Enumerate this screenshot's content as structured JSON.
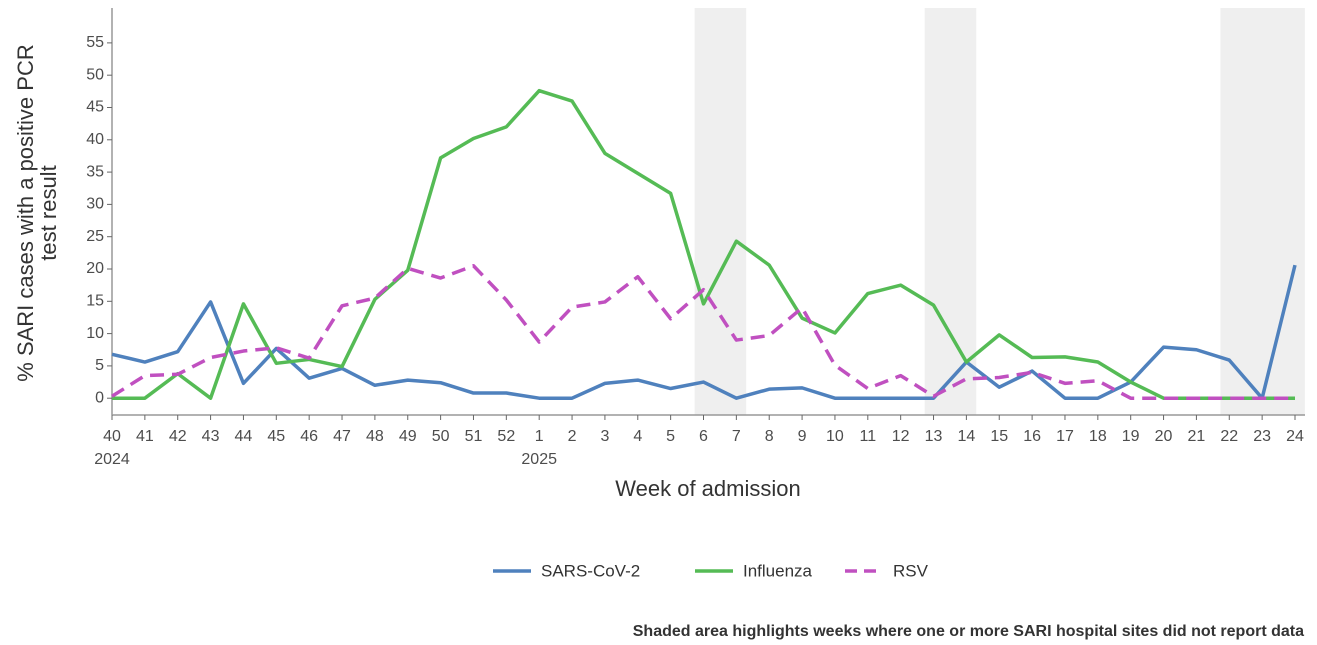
{
  "chart_data": {
    "type": "line",
    "y_label": [
      "% SARI cases with a positive PCR",
      "test result"
    ],
    "x_label": "Week of admission",
    "note": "Shaded area highlights weeks where one or more SARI hospital sites did not report data",
    "categories": [
      "40",
      "41",
      "42",
      "43",
      "44",
      "45",
      "46",
      "47",
      "48",
      "49",
      "50",
      "51",
      "52",
      "1",
      "2",
      "3",
      "4",
      "5",
      "6",
      "7",
      "8",
      "9",
      "10",
      "11",
      "12",
      "13",
      "14",
      "15",
      "16",
      "17",
      "18",
      "19",
      "20",
      "21",
      "22",
      "23",
      "24"
    ],
    "years": [
      "2024",
      null,
      null,
      null,
      null,
      null,
      null,
      null,
      null,
      null,
      null,
      null,
      null,
      "2025",
      null,
      null,
      null,
      null,
      null,
      null,
      null,
      null,
      null,
      null,
      null,
      null,
      null,
      null,
      null,
      null,
      null,
      null,
      null,
      null,
      null,
      null,
      null
    ],
    "shaded_weeks": [
      [
        "6",
        "7"
      ],
      [
        "13",
        "14"
      ],
      [
        "22",
        "24"
      ]
    ],
    "ylim": [
      -2.6,
      60.4
    ],
    "yticks": [
      0,
      5,
      10,
      15,
      20,
      25,
      30,
      35,
      40,
      45,
      50,
      55
    ],
    "series": [
      {
        "name": "SARS-CoV-2",
        "color": "#4f81bd",
        "dash": false,
        "values": [
          6.8,
          5.6,
          7.2,
          14.9,
          2.3,
          7.7,
          3.1,
          4.6,
          2.0,
          2.8,
          2.4,
          0.8,
          0.8,
          0,
          0,
          2.3,
          2.8,
          1.5,
          2.5,
          0,
          1.4,
          1.6,
          0,
          0,
          0,
          0,
          5.6,
          1.7,
          4.2,
          0,
          0,
          2.5,
          7.9,
          7.5,
          5.9,
          0,
          20.6
        ]
      },
      {
        "name": "Influenza",
        "color": "#55bb55",
        "dash": false,
        "values": [
          0,
          0,
          3.8,
          0,
          14.6,
          5.4,
          6.0,
          4.9,
          15.3,
          19.8,
          37.2,
          40.2,
          42.0,
          47.6,
          46.0,
          37.9,
          34.8,
          31.7,
          14.6,
          24.3,
          20.6,
          12.4,
          10.1,
          16.2,
          17.5,
          14.4,
          5.6,
          9.8,
          6.3,
          6.4,
          5.6,
          2.5,
          0,
          0,
          0,
          0,
          0
        ]
      },
      {
        "name": "RSV",
        "color": "#c050c0",
        "dash": true,
        "values": [
          0.3,
          3.5,
          3.7,
          6.3,
          7.3,
          7.8,
          6.2,
          14.3,
          15.5,
          20.1,
          18.6,
          20.5,
          15.2,
          8.7,
          14.1,
          14.9,
          18.8,
          12.3,
          16.8,
          9.0,
          9.7,
          14.0,
          5.1,
          1.5,
          3.5,
          0.3,
          3.0,
          3.2,
          4.0,
          2.3,
          2.7,
          0,
          0,
          0,
          0,
          0,
          0
        ]
      }
    ]
  }
}
